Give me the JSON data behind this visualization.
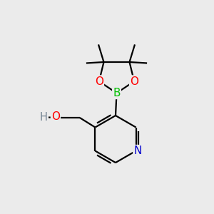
{
  "background_color": "#ebebeb",
  "bond_color": "#000000",
  "atom_colors": {
    "B": "#00c000",
    "O": "#ff0000",
    "N": "#0000cd",
    "H": "#708090",
    "C": "#000000"
  },
  "figsize": [
    3.0,
    3.0
  ],
  "dpi": 100,
  "xlim": [
    0,
    10
  ],
  "ylim": [
    0,
    10
  ]
}
